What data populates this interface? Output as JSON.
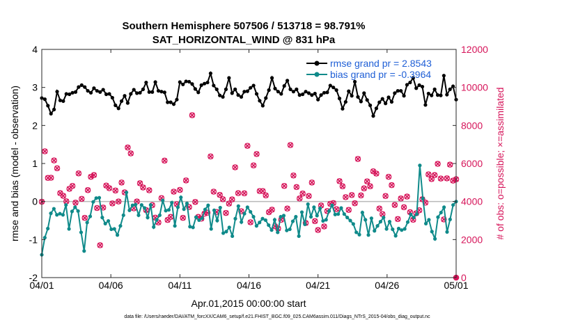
{
  "chart_data": {
    "type": "line",
    "title": "Southern Hemisphere 507506 / 513718 = 98.791%",
    "subtitle": "SAT_HORIZONTAL_WIND @ 831 hPa",
    "xlabel": "Apr.01,2015 00:00:00 start",
    "ylabel_left": "rmse and bias (model - observation)",
    "ylabel_right": "# of obs: o=possible; ×=assimilated",
    "footnote": "data file: /Users/raeder/DAI/ATM_forcXX/CAM6_setup/f.e21.FHIST_BGC.f09_025.CAM6assim.011/Diags_NTrS_2015-04/obs_diag_output.nc",
    "x_ticks": [
      "04/01",
      "04/06",
      "04/11",
      "04/16",
      "04/21",
      "04/26",
      "05/01"
    ],
    "x_tick_days": [
      0,
      5,
      10,
      15,
      20,
      25,
      30
    ],
    "xlim": [
      0,
      30
    ],
    "ylim_left": [
      -2,
      4
    ],
    "y_ticks_left": [
      "-2",
      "-1",
      "0",
      "1",
      "2",
      "3",
      "4"
    ],
    "ylim_right": [
      0,
      12000
    ],
    "y_ticks_right": [
      "0",
      "2000",
      "4000",
      "6000",
      "8000",
      "10000",
      "12000"
    ],
    "zero_line": 0,
    "legend": [
      {
        "label": "rmse grand pr = 2.8543",
        "color": "#000000"
      },
      {
        "label": "bias grand pr = -0.3964",
        "color": "#0f8a8a"
      }
    ],
    "colors": {
      "rmse": "#000000",
      "bias": "#0f8a8a",
      "obs": "#d6155a",
      "zero": "#b8b8b8"
    },
    "rmse_values": [
      2.72,
      2.69,
      2.52,
      2.31,
      2.42,
      2.89,
      2.66,
      2.64,
      2.83,
      2.82,
      2.86,
      2.88,
      3.01,
      3.06,
      3.01,
      2.91,
      2.86,
      2.98,
      2.91,
      2.88,
      2.94,
      2.82,
      2.83,
      2.73,
      2.53,
      2.45,
      2.64,
      2.78,
      2.59,
      2.83,
      2.94,
      2.85,
      2.86,
      2.95,
      3.13,
      2.88,
      2.88,
      3.14,
      2.91,
      2.89,
      2.87,
      2.61,
      2.61,
      2.56,
      2.68,
      3.14,
      3.08,
      3.16,
      3.15,
      3.09,
      2.96,
      2.87,
      3.06,
      3.1,
      3.13,
      3.37,
      3.05,
      2.95,
      2.79,
      2.75,
      2.95,
      3.25,
      2.85,
      2.95,
      2.8,
      2.75,
      2.89,
      2.9,
      2.99,
      3.05,
      2.83,
      2.65,
      2.52,
      2.72,
      2.93,
      3.25,
      2.97,
      2.89,
      2.83,
      3.04,
      3.18,
      2.95,
      2.89,
      2.95,
      2.8,
      2.82,
      2.89,
      2.85,
      2.8,
      2.84,
      2.68,
      2.8,
      2.86,
      2.87,
      3.05,
      3.0,
      2.93,
      2.71,
      2.44,
      2.62,
      2.9,
      2.78,
      3.15,
      2.75,
      2.63,
      2.85,
      2.67,
      2.53,
      2.25,
      2.45,
      2.61,
      2.7,
      2.58,
      2.74,
      2.62,
      2.85,
      2.91,
      2.91,
      2.78,
      3.07,
      3.13,
      3.25,
      2.98,
      3.06,
      3.02,
      2.54,
      2.84,
      2.79,
      2.95,
      2.8,
      2.79,
      3.31,
      2.81,
      2.95,
      3.03,
      2.68
    ],
    "bias_values": [
      -1.4,
      -0.95,
      -0.71,
      -0.31,
      -0.19,
      -0.35,
      -0.32,
      -0.35,
      -0.09,
      -0.72,
      -0.26,
      -0.15,
      -0.25,
      -0.81,
      -1.3,
      -0.55,
      -0.39,
      -0.01,
      0.09,
      0.1,
      -0.42,
      -0.58,
      -0.51,
      -0.73,
      -0.72,
      -0.88,
      -0.64,
      -0.36,
      0.24,
      -0.23,
      -0.1,
      -0.08,
      -0.36,
      -0.09,
      -0.17,
      -0.42,
      -0.09,
      -0.67,
      -0.48,
      -0.36,
      0.03,
      -0.24,
      -0.22,
      -0.03,
      -0.64,
      -0.15,
      0.11,
      -0.2,
      -0.05,
      -0.66,
      -0.68,
      -0.41,
      -0.49,
      -0.44,
      -0.21,
      -0.1,
      -0.72,
      -0.23,
      -0.5,
      -0.16,
      -0.83,
      -0.79,
      -0.68,
      -0.91,
      -0.45,
      -0.12,
      -0.54,
      -0.32,
      -0.15,
      -0.27,
      -0.4,
      -0.64,
      -0.55,
      -0.45,
      -0.49,
      -0.62,
      -0.75,
      -0.48,
      -0.81,
      -0.4,
      -0.37,
      -0.76,
      -0.73,
      -0.52,
      -0.4,
      -0.91,
      -0.28,
      -0.6,
      -0.07,
      -0.4,
      -0.15,
      -0.37,
      -0.18,
      -0.51,
      -0.48,
      -0.25,
      -0.1,
      -0.34,
      -0.33,
      -0.17,
      -0.33,
      -0.42,
      -0.5,
      -0.59,
      -0.81,
      -0.87,
      -0.29,
      -0.48,
      -0.88,
      -0.44,
      -0.77,
      -0.64,
      -0.53,
      -0.42,
      -0.72,
      -0.53,
      -0.73,
      -0.9,
      -0.71,
      -0.75,
      -0.72,
      -0.54,
      -0.34,
      -0.42,
      -0.33,
      0.95,
      0.08,
      -0.58,
      -0.48,
      -0.79,
      -0.98,
      -0.41,
      -0.29,
      -0.15,
      -0.8,
      -0.47,
      -0.09,
      0.0
    ],
    "obs_values": [
      3990,
      6640,
      5240,
      5250,
      6160,
      5750,
      4440,
      4300,
      4010,
      4670,
      4820,
      3940,
      5480,
      4140,
      3140,
      4600,
      5300,
      5390,
      3660,
      1700,
      3680,
      4840,
      4700,
      3900,
      4580,
      4000,
      5000,
      4480,
      6840,
      6530,
      3640,
      4000,
      4960,
      4740,
      3550,
      4590,
      3810,
      3150,
      2900,
      4180,
      6150,
      3030,
      3190,
      4520,
      3860,
      4610,
      3140,
      5110,
      3710,
      8540,
      3980,
      3190,
      3100,
      3360,
      3410,
      6370,
      4520,
      3450,
      4350,
      4120,
      3400,
      3890,
      4110,
      5800,
      4440,
      3490,
      4430,
      6930,
      2910,
      5900,
      6500,
      4550,
      4550,
      4320,
      3440,
      3570,
      2700,
      2580,
      3040,
      4820,
      3630,
      6970,
      5370,
      4760,
      4160,
      4420,
      2870,
      4290,
      5000,
      2970,
      2500,
      3790,
      2690,
      3500,
      3880,
      3920,
      3600,
      5070,
      4800,
      4230,
      3560,
      4340,
      3910,
      6240,
      4320,
      4690,
      5060,
      4800,
      5590,
      5470,
      3630,
      3340,
      4290,
      5300,
      4860,
      3820,
      3080,
      4160,
      3700,
      4260,
      3440,
      3040,
      3380,
      3540,
      4120,
      3940,
      5430,
      5180,
      5390,
      5980,
      5210,
      3060,
      5220,
      5940,
      5100,
      5170
    ]
  }
}
